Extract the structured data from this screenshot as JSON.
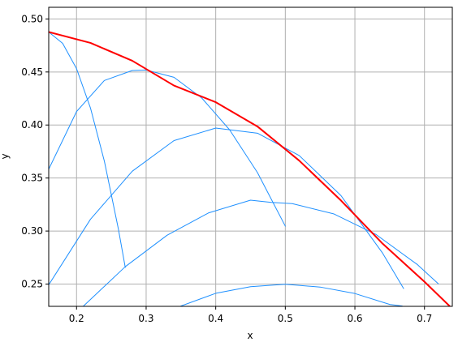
{
  "chart_data": {
    "type": "line",
    "title": "",
    "xlabel": "x",
    "ylabel": "y",
    "xlim": [
      0.16,
      0.74
    ],
    "ylim": [
      0.229,
      0.511
    ],
    "xticks": [
      0.2,
      0.3,
      0.4,
      0.5,
      0.6,
      0.7
    ],
    "xtick_labels": [
      "0.2",
      "0.3",
      "0.4",
      "0.5",
      "0.6",
      "0.7"
    ],
    "yticks": [
      0.25,
      0.3,
      0.35,
      0.4,
      0.45,
      0.5
    ],
    "ytick_labels": [
      "0.25",
      "0.30",
      "0.35",
      "0.40",
      "0.45",
      "0.50"
    ],
    "grid": true,
    "series": [
      {
        "color": "#1e90ff",
        "width": 1,
        "x": [
          0.16,
          0.18,
          0.2,
          0.22,
          0.24,
          0.26,
          0.27
        ],
        "y": [
          0.4877,
          0.477,
          0.4531,
          0.416,
          0.3658,
          0.3023,
          0.2657
        ]
      },
      {
        "color": "#1e90ff",
        "width": 1,
        "x": [
          0.16,
          0.2,
          0.24,
          0.28,
          0.3,
          0.34,
          0.38,
          0.42,
          0.46,
          0.5
        ],
        "y": [
          0.3583,
          0.4127,
          0.442,
          0.4514,
          0.4519,
          0.445,
          0.4254,
          0.3954,
          0.3551,
          0.3046
        ]
      },
      {
        "color": "#1e90ff",
        "width": 1,
        "x": [
          0.16,
          0.22,
          0.28,
          0.34,
          0.4,
          0.46,
          0.52,
          0.58,
          0.64,
          0.67
        ],
        "y": [
          0.2493,
          0.3111,
          0.3564,
          0.3853,
          0.3971,
          0.3923,
          0.3712,
          0.3334,
          0.279,
          0.2458
        ]
      },
      {
        "color": "#1e90ff",
        "width": 1,
        "x": [
          0.21,
          0.27,
          0.33,
          0.39,
          0.45,
          0.48,
          0.51,
          0.57,
          0.63,
          0.69,
          0.72
        ],
        "y": [
          0.2293,
          0.2664,
          0.296,
          0.3172,
          0.3291,
          0.327,
          0.3259,
          0.3161,
          0.2969,
          0.2683,
          0.2502
        ]
      },
      {
        "color": "#1e90ff",
        "width": 1,
        "x": [
          0.35,
          0.4,
          0.45,
          0.5,
          0.55,
          0.6,
          0.65,
          0.668
        ],
        "y": [
          0.2293,
          0.2413,
          0.2475,
          0.2498,
          0.2472,
          0.2411,
          0.2308,
          0.2293
        ]
      },
      {
        "name": "",
        "color": "#ff0000",
        "width": 2,
        "x": [
          0.16,
          0.22,
          0.28,
          0.34,
          0.4,
          0.46,
          0.52,
          0.58,
          0.64,
          0.7,
          0.736
        ],
        "y": [
          0.4877,
          0.4774,
          0.4606,
          0.4372,
          0.4215,
          0.3986,
          0.3664,
          0.3288,
          0.288,
          0.2522,
          0.2293
        ]
      }
    ]
  }
}
